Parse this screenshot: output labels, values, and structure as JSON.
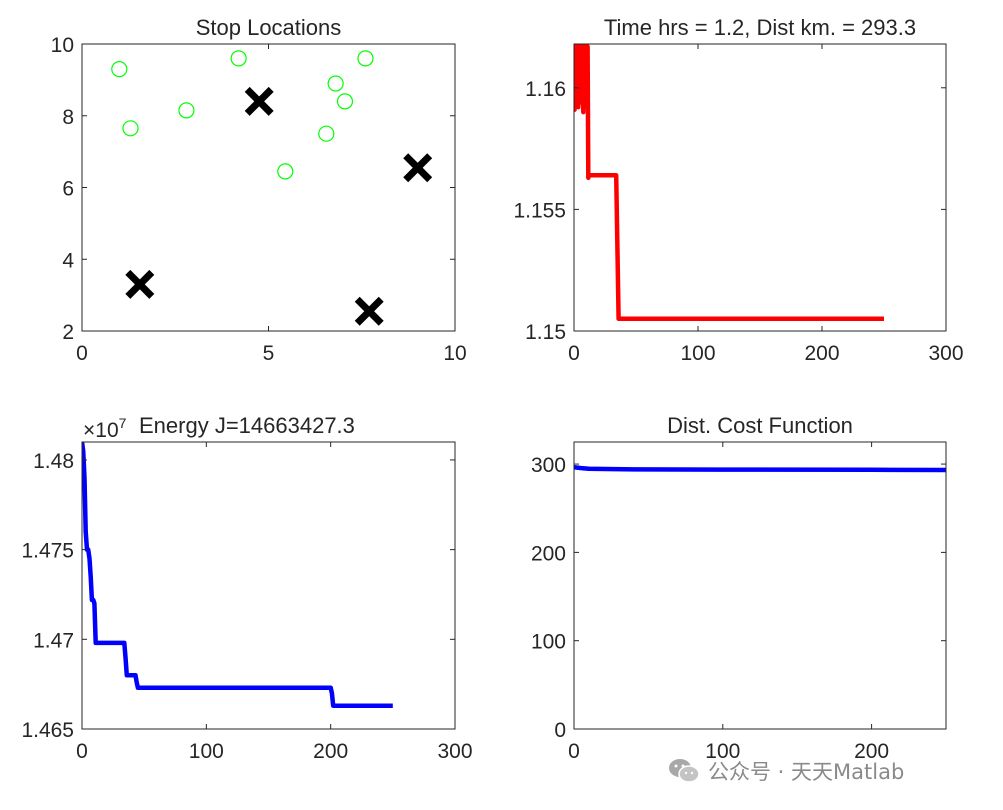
{
  "chart_data": [
    {
      "type": "scatter",
      "title": "Stop Locations",
      "xlim": [
        0,
        10
      ],
      "ylim": [
        2,
        10
      ],
      "xticks": [
        "0",
        "5",
        "10"
      ],
      "yticks": [
        "2",
        "4",
        "6",
        "8",
        "10"
      ],
      "grid": false,
      "series": [
        {
          "marker": "circle",
          "color": "#00ff00",
          "points": [
            [
              1.0,
              9.3
            ],
            [
              1.3,
              7.65
            ],
            [
              2.8,
              8.15
            ],
            [
              4.2,
              9.6
            ],
            [
              5.45,
              6.45
            ],
            [
              6.55,
              7.5
            ],
            [
              6.8,
              8.9
            ],
            [
              7.05,
              8.4
            ],
            [
              7.6,
              9.6
            ]
          ]
        },
        {
          "marker": "x",
          "color": "#000000",
          "points": [
            [
              4.75,
              8.4
            ],
            [
              1.55,
              3.3
            ],
            [
              9.0,
              6.55
            ],
            [
              7.7,
              2.55
            ]
          ]
        }
      ]
    },
    {
      "type": "line",
      "title": "Time hrs = 1.2, Dist km. = 293.3",
      "xlim": [
        0,
        300
      ],
      "ylim": [
        1.15,
        1.1618
      ],
      "xticks": [
        "0",
        "100",
        "200",
        "300"
      ],
      "yticks": [
        "1.15",
        "1.155",
        "1.16"
      ],
      "grid": false,
      "series": [
        {
          "color": "#ff0000",
          "x": [
            0,
            0.5,
            1,
            1.5,
            2,
            2.5,
            3,
            3.5,
            4,
            4.5,
            5,
            5.5,
            6,
            6.5,
            7,
            7.5,
            8,
            8.5,
            9,
            9.5,
            10,
            10.5,
            11,
            11.5,
            12,
            13,
            15,
            20,
            25,
            30,
            34,
            36,
            40,
            60,
            100,
            150,
            200,
            250
          ],
          "y": [
            1.1618,
            1.1591,
            1.1618,
            1.1595,
            1.1618,
            1.1599,
            1.1618,
            1.1592,
            1.1618,
            1.1598,
            1.1618,
            1.1594,
            1.1618,
            1.1596,
            1.1618,
            1.159,
            1.1618,
            1.1593,
            1.1618,
            1.1597,
            1.1618,
            1.1592,
            1.1617,
            1.1563,
            1.1564,
            1.1564,
            1.1564,
            1.1564,
            1.1564,
            1.1564,
            1.1564,
            1.1505,
            1.1505,
            1.1505,
            1.1505,
            1.1505,
            1.1505,
            1.1505
          ]
        }
      ]
    },
    {
      "type": "line",
      "title": "Energy J=14663427.3",
      "exponent": "10",
      "exponent_power": "7",
      "xlim": [
        0,
        300
      ],
      "ylim": [
        1.465,
        1.481
      ],
      "xticks": [
        "0",
        "100",
        "200",
        "300"
      ],
      "yticks": [
        "1.465",
        "1.47",
        "1.475",
        "1.48"
      ],
      "grid": false,
      "series": [
        {
          "color": "#0000ff",
          "x": [
            0,
            1,
            2,
            3,
            4,
            5,
            6,
            7,
            8,
            9,
            10,
            11,
            12,
            20,
            34,
            35,
            36,
            40,
            43,
            44,
            45,
            100,
            150,
            200,
            201,
            202,
            203,
            250
          ],
          "y": [
            1.481,
            1.4805,
            1.479,
            1.476,
            1.475,
            1.475,
            1.4745,
            1.4735,
            1.4722,
            1.4722,
            1.472,
            1.4698,
            1.4698,
            1.4698,
            1.4698,
            1.469,
            1.468,
            1.468,
            1.468,
            1.4676,
            1.4673,
            1.4673,
            1.4673,
            1.4673,
            1.467,
            1.4663,
            1.4663,
            1.4663
          ]
        }
      ]
    },
    {
      "type": "line",
      "title": "Dist. Cost Function",
      "xlim": [
        0,
        250
      ],
      "ylim": [
        0,
        325
      ],
      "xticks": [
        "0",
        "100",
        "200"
      ],
      "yticks": [
        "0",
        "100",
        "200",
        "300"
      ],
      "grid": false,
      "series": [
        {
          "color": "#0000ff",
          "x": [
            0,
            5,
            10,
            15,
            40,
            100,
            200,
            250
          ],
          "y": [
            296.5,
            295.5,
            294.8,
            294.5,
            294.0,
            293.8,
            293.5,
            293.3
          ]
        }
      ]
    }
  ],
  "watermark": {
    "text": "公众号 · 天天Matlab",
    "icon": "wechat-icon"
  }
}
